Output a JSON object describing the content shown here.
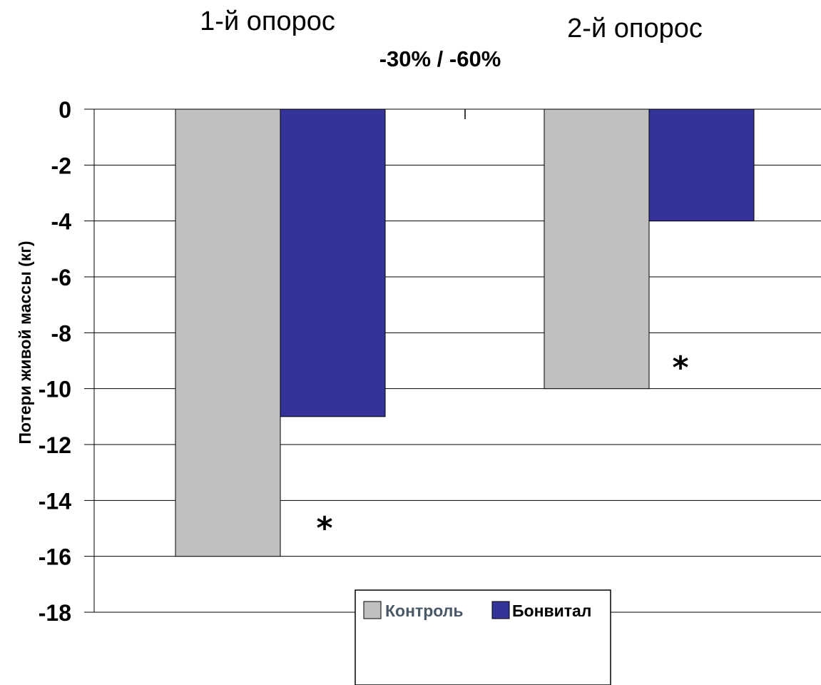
{
  "chart_data": {
    "type": "bar",
    "subtitle": "-30% / -60%",
    "categories": [
      "1-й опорос",
      "2-й опорос"
    ],
    "series": [
      {
        "name": "Контроль",
        "values": [
          -16,
          -10
        ],
        "color": "#c0c0c0"
      },
      {
        "name": "Бонвитал",
        "values": [
          -11,
          -4
        ],
        "color": "#333399"
      }
    ],
    "ylabel": "Потери живой массы (кг)",
    "ylim": [
      -18,
      0
    ],
    "yticks": [
      "0",
      "-2",
      "-4",
      "-6",
      "-8",
      "-10",
      "-12",
      "-14",
      "-16",
      "-18"
    ],
    "annotations": [
      "*",
      "*"
    ],
    "grid": true,
    "legend_position": "bottom",
    "legend_text_colors": [
      "#4a5868",
      "#000000"
    ]
  }
}
